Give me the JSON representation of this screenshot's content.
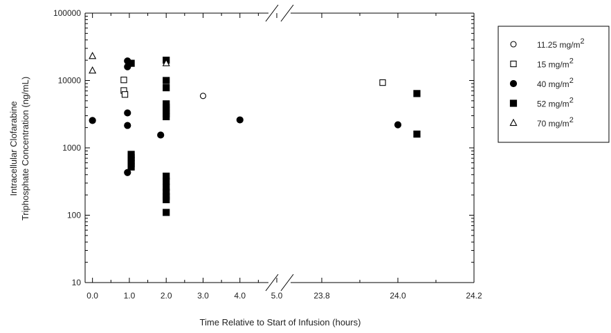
{
  "chart_data": {
    "type": "scatter",
    "xlabel": "Time Relative to Start of Infusion (hours)",
    "ylabel_lines": [
      "Intracellular Clofarabine",
      "Triphosphate Concentration (ng/mL)"
    ],
    "y_scale": "log",
    "ylim": [
      10,
      100000
    ],
    "y_ticks": [
      10,
      100,
      1000,
      10000,
      100000
    ],
    "y_tick_labels": [
      "10",
      "100",
      "1000",
      "10000",
      "100000"
    ],
    "x_axis_break": true,
    "x_ranges": [
      [
        -0.2,
        5.0
      ],
      [
        23.7,
        24.2
      ]
    ],
    "x_ticks": [
      0.0,
      1.0,
      2.0,
      3.0,
      4.0,
      5.0,
      23.8,
      24.0,
      24.2
    ],
    "x_tick_labels": [
      "0.0",
      "1.0",
      "2.0",
      "3.0",
      "4.0",
      "5.0",
      "23.8",
      "24.0",
      "24.2"
    ],
    "legend_placement": "outside-right",
    "series": [
      {
        "name": "11.25 mg/m",
        "sup": "2",
        "marker": "open-circle",
        "points": [
          [
            3.0,
            5900
          ]
        ]
      },
      {
        "name": "15 mg/m",
        "sup": "2",
        "marker": "open-square",
        "points": [
          [
            0.85,
            10200
          ],
          [
            0.85,
            7100
          ],
          [
            0.88,
            6200
          ],
          [
            23.96,
            9300
          ]
        ]
      },
      {
        "name": "40 mg/m",
        "sup": "2",
        "marker": "filled-circle",
        "points": [
          [
            0.0,
            2550
          ],
          [
            0.95,
            19500
          ],
          [
            0.95,
            16000
          ],
          [
            0.95,
            3300
          ],
          [
            0.95,
            2150
          ],
          [
            0.95,
            430
          ],
          [
            1.85,
            1550
          ],
          [
            4.0,
            2600
          ],
          [
            24.0,
            2200
          ]
        ]
      },
      {
        "name": "52 mg/m",
        "sup": "2",
        "marker": "filled-square",
        "points": [
          [
            1.05,
            18000
          ],
          [
            1.05,
            800
          ],
          [
            1.05,
            720
          ],
          [
            1.05,
            650
          ],
          [
            1.05,
            580
          ],
          [
            1.05,
            520
          ],
          [
            2.0,
            20000
          ],
          [
            2.0,
            10000
          ],
          [
            2.0,
            7800
          ],
          [
            2.0,
            4500
          ],
          [
            2.0,
            4000
          ],
          [
            2.0,
            3600
          ],
          [
            2.0,
            3200
          ],
          [
            2.0,
            2900
          ],
          [
            2.0,
            380
          ],
          [
            2.0,
            320
          ],
          [
            2.0,
            260
          ],
          [
            2.0,
            220
          ],
          [
            2.0,
            190
          ],
          [
            2.0,
            170
          ],
          [
            2.0,
            110
          ],
          [
            24.05,
            6400
          ],
          [
            24.05,
            1600
          ]
        ]
      },
      {
        "name": "70 mg/m",
        "sup": "2",
        "marker": "open-triangle",
        "points": [
          [
            0.0,
            23000
          ],
          [
            0.0,
            14000
          ],
          [
            2.0,
            18000
          ]
        ]
      }
    ]
  }
}
